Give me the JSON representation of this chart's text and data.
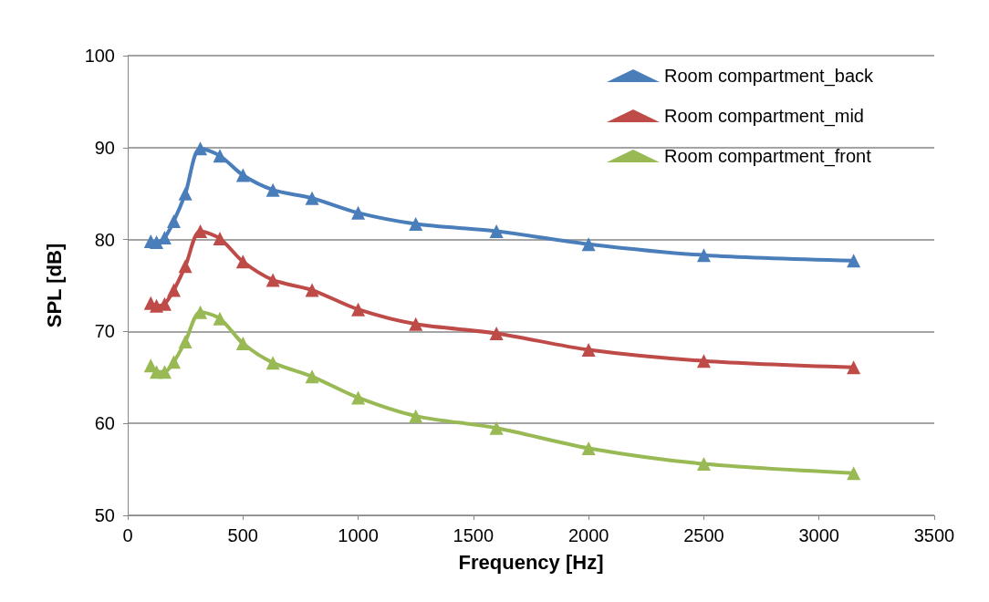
{
  "chart_data": {
    "type": "line",
    "xlabel": "Frequency [Hz]",
    "ylabel": "SPL [dB]",
    "x": [
      100,
      125,
      160,
      200,
      250,
      315,
      400,
      500,
      630,
      800,
      1000,
      1250,
      1600,
      2000,
      2500,
      3150
    ],
    "series": [
      {
        "name": "Room compartment_back",
        "color": "#4a7ebb",
        "values": [
          79.8,
          79.7,
          80.2,
          82.0,
          85.0,
          89.9,
          89.1,
          87.0,
          85.4,
          84.5,
          82.9,
          81.7,
          80.9,
          79.5,
          78.3,
          77.7
        ]
      },
      {
        "name": "Room compartment_mid",
        "color": "#be4b48",
        "values": [
          73.1,
          72.8,
          73.0,
          74.5,
          77.1,
          80.9,
          80.1,
          77.6,
          75.6,
          74.5,
          72.4,
          70.8,
          69.8,
          68.0,
          66.8,
          66.1
        ]
      },
      {
        "name": "Room compartment_front",
        "color": "#98b954",
        "values": [
          66.3,
          65.6,
          65.6,
          66.7,
          68.9,
          72.1,
          71.4,
          68.7,
          66.6,
          65.1,
          62.8,
          60.8,
          59.5,
          57.3,
          55.6,
          54.6
        ]
      }
    ],
    "xlim": [
      0,
      3500
    ],
    "xticks": [
      0,
      500,
      1000,
      1500,
      2000,
      2500,
      3000,
      3500
    ],
    "ylim": [
      50,
      100
    ],
    "yticks": [
      50,
      60,
      70,
      80,
      90,
      100
    ],
    "grid": "y",
    "legend": "top right",
    "marker": "triangle",
    "line_style": "solid"
  }
}
